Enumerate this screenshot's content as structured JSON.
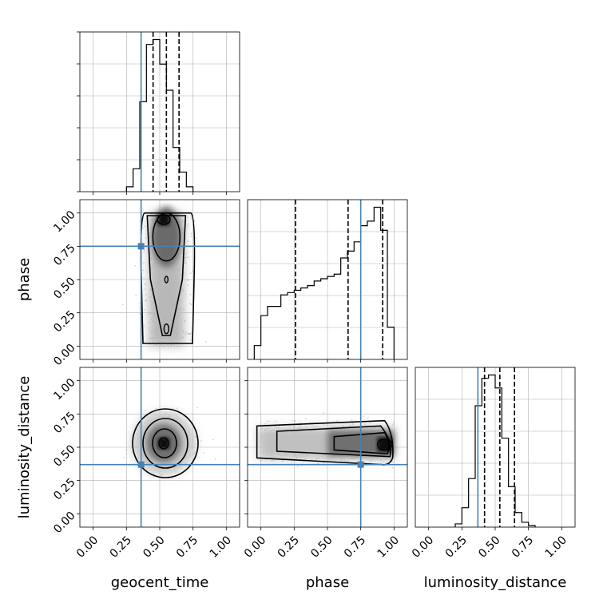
{
  "chart_data": {
    "type": "corner",
    "parameters": [
      "geocent_time",
      "phase",
      "luminosity_distance"
    ],
    "axis_labels": {
      "x": [
        "geocent_time",
        "phase",
        "luminosity_distance"
      ],
      "y": [
        "phase",
        "luminosity_distance"
      ]
    },
    "ticks": [
      0.0,
      0.25,
      0.5,
      0.75,
      1.0
    ],
    "tick_labels": [
      "0.00",
      "0.25",
      "0.50",
      "0.75",
      "1.00"
    ],
    "axis_range": [
      -0.1,
      1.1
    ],
    "truths": {
      "geocent_time": 0.36,
      "phase": 0.75,
      "luminosity_distance": 0.37
    },
    "quantiles": {
      "geocent_time": [
        0.45,
        0.55,
        0.645
      ],
      "phase": [
        0.26,
        0.655,
        0.915
      ],
      "luminosity_distance": [
        0.42,
        0.535,
        0.645
      ]
    },
    "histograms": {
      "bin_width": 0.05,
      "geocent_time": {
        "bin_edges_start": 0.25,
        "counts": [
          3,
          14,
          55,
          90,
          93,
          78,
          62,
          27,
          12,
          3
        ]
      },
      "phase": {
        "bin_edges_start": -0.05,
        "counts": [
          6,
          19,
          23,
          23,
          28,
          29,
          30,
          31,
          32,
          34,
          35,
          36,
          37,
          44,
          47,
          51,
          58,
          60,
          66,
          56,
          14
        ]
      },
      "luminosity_distance": {
        "bin_edges_start": 0.2,
        "counts": [
          2,
          12,
          30,
          75,
          92,
          94,
          86,
          55,
          25,
          9,
          3,
          1
        ]
      }
    },
    "density_peaks": {
      "geocent_time_vs_phase": [
        0.53,
        0.95
      ],
      "geocent_time_vs_luminosity_distance": [
        0.53,
        0.53
      ],
      "phase_vs_luminosity_distance": [
        0.93,
        0.52
      ]
    },
    "colors": {
      "truth": "#4682b4",
      "hist": "#000000",
      "quantile": "#000000",
      "grid": "#b0b0b0"
    },
    "grid": true
  }
}
